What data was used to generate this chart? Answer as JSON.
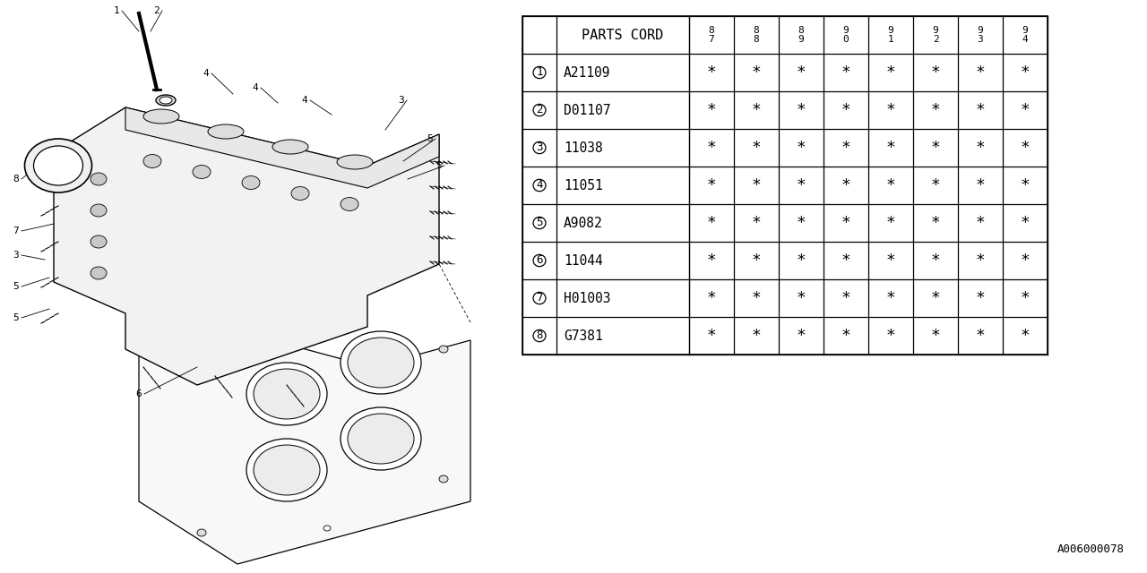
{
  "background_color": "#ffffff",
  "table": {
    "header_label": "PARTS CORD",
    "year_cols": [
      "8\n7",
      "8\n8",
      "8\n9",
      "9\n0",
      "9\n1",
      "9\n2",
      "9\n3",
      "9\n4"
    ],
    "rows": [
      {
        "num": "1",
        "part": "A21109"
      },
      {
        "num": "2",
        "part": "D01107"
      },
      {
        "num": "3",
        "part": "11038"
      },
      {
        "num": "4",
        "part": "11051"
      },
      {
        "num": "5",
        "part": "A9082"
      },
      {
        "num": "6",
        "part": "11044"
      },
      {
        "num": "7",
        "part": "H01003"
      },
      {
        "num": "8",
        "part": "G7381"
      }
    ]
  },
  "footer_code": "A006000078"
}
